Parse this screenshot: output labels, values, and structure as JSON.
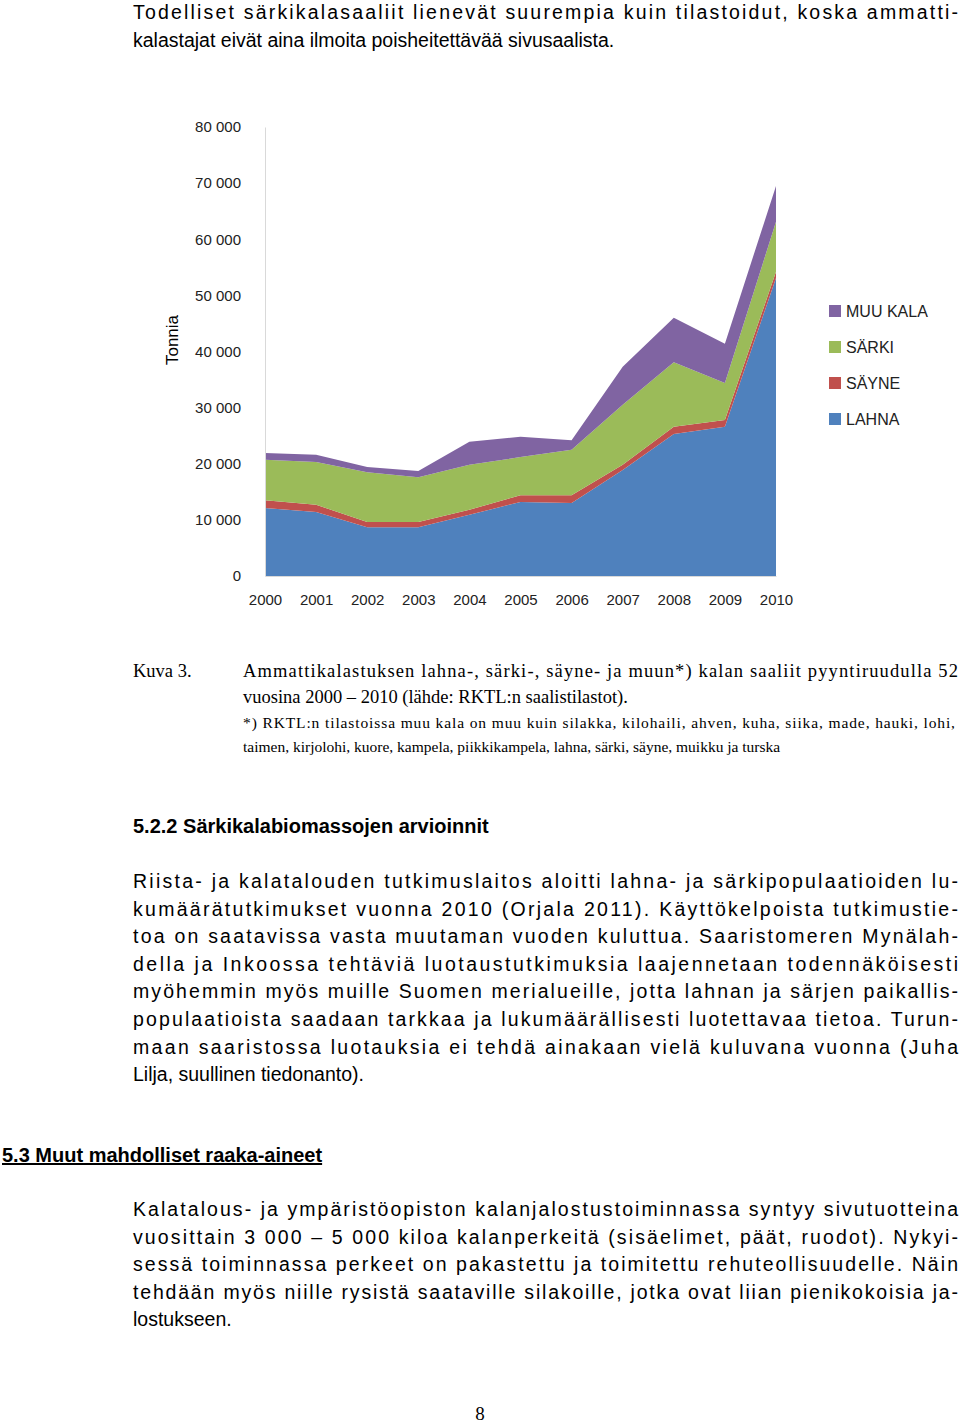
{
  "intro": {
    "lines": [
      "Todelliset särkikalasaaliit lienevät suurempia kuin tilastoidut, koska ammatti-",
      "kalastajat eivät aina ilmoita poisheitettävää sivusaalista."
    ]
  },
  "chart_data": {
    "type": "area",
    "stacked": true,
    "y_label": "Tonnia",
    "x": [
      2000,
      2001,
      2002,
      2003,
      2004,
      2005,
      2006,
      2007,
      2008,
      2009,
      2010
    ],
    "xlim": [
      2000,
      2010
    ],
    "xticks": [
      2000,
      2001,
      2002,
      2003,
      2004,
      2005,
      2006,
      2007,
      2008,
      2009,
      2010
    ],
    "ylim": [
      0,
      80000
    ],
    "yticks": [
      0,
      {
        "value": 10000,
        "label": "10 000"
      },
      {
        "value": 20000,
        "label": "20 000"
      },
      {
        "value": 30000,
        "label": "30 000"
      },
      {
        "value": 40000,
        "label": "40 000"
      },
      {
        "value": 50000,
        "label": "50 000"
      },
      {
        "value": 60000,
        "label": "60 000"
      },
      {
        "value": 70000,
        "label": "70 000"
      },
      {
        "value": 80000,
        "label": "80 000"
      }
    ],
    "grid": false,
    "legend": "right",
    "series": [
      {
        "name": "LAHNA",
        "color": "#4f81bd",
        "values": [
          12100,
          11400,
          8700,
          8700,
          10900,
          13200,
          13000,
          18900,
          25300,
          26600,
          53100
        ]
      },
      {
        "name": "SÄYNE",
        "color": "#c0504d",
        "values": [
          1400,
          1300,
          900,
          900,
          900,
          1200,
          1400,
          900,
          1300,
          1200,
          1100
        ]
      },
      {
        "name": "SÄRKI",
        "color": "#9bbb59",
        "values": [
          7200,
          7600,
          8900,
          8000,
          8000,
          6800,
          8100,
          10700,
          11500,
          6600,
          8900
        ]
      },
      {
        "name": "MUU KALA",
        "color": "#8064a2",
        "values": [
          1200,
          1300,
          900,
          1100,
          4100,
          3600,
          1700,
          6800,
          7900,
          7000,
          6400
        ]
      }
    ]
  },
  "caption": {
    "label": "Kuva 3.",
    "lines": [
      "Ammattikalastuksen lahna-, särki-, säyne- ja muun*) kalan saaliit pyyntiruudulla 52",
      "vuosina 2000 – 2010 (lähde: RKTL:n saalistilastot)."
    ],
    "footnote_lines": [
      "*) RKTL:n tilastoissa muu kala on muu kuin silakka, kilohaili, ahven, kuha, siika, made, hauki, lohi,",
      "taimen, kirjolohi, kuore, kampela, piikkikampela, lahna, särki, säyne, muikku ja turska"
    ]
  },
  "sections": [
    {
      "heading": "5.2.2 Särkikalabiomassojen arvioinnit",
      "lines": [
        "Riista- ja kalatalouden tutkimuslaitos aloitti lahna- ja särkipopulaatioiden lu-",
        "kumäärätutkimukset vuonna 2010 (Orjala 2011). Käyttökelpoista tutkimustie-",
        "toa on saatavissa vasta muutaman vuoden kuluttua. Saaristomeren Mynälah-",
        "della ja Inkoossa tehtäviä luotaustutkimuksia laajennetaan todennäköisesti",
        "myöhemmin myös muille Suomen merialueille, jotta lahnan ja särjen paikallis-",
        "populaatioista saadaan tarkkaa ja lukumäärällisesti luotettavaa tietoa. Turun-",
        "maan saaristossa luotauksia ei tehdä ainakaan vielä kuluvana vuonna (Juha",
        "Lilja, suullinen tiedonanto)."
      ]
    },
    {
      "heading": "5.3 Muut mahdolliset raaka-aineet",
      "lines": [
        "Kalatalous- ja ympäristöopiston kalanjalostustoiminnassa syntyy sivutuotteina",
        "vuosittain 3 000 – 5 000 kiloa kalanperkeitä (sisäelimet, päät, ruodot). Nykyi-",
        "sessä toiminnassa perkeet on pakastettu ja toimitettu rehuteollisuudelle. Näin",
        "tehdään myös niille rysistä saataville silakoille, jotka ovat liian pienikokoisia ja-",
        "lostukseen."
      ]
    }
  ],
  "page_number": 8
}
